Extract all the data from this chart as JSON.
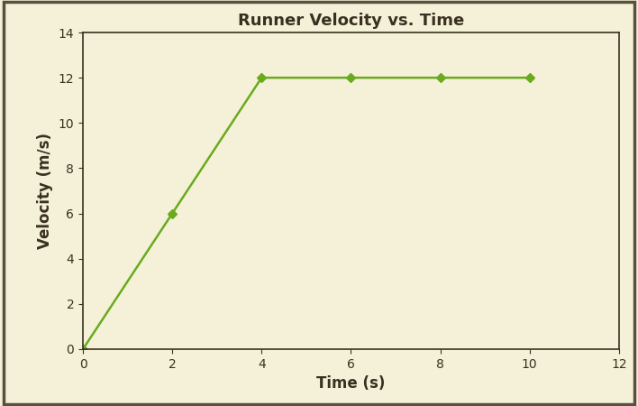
{
  "title": "Runner Velocity vs. Time",
  "xlabel": "Time (s)",
  "ylabel": "Velocity (m/s)",
  "x": [
    0,
    2,
    4,
    6,
    8,
    10
  ],
  "y": [
    0,
    6,
    12,
    12,
    12,
    12
  ],
  "xlim": [
    0,
    12
  ],
  "ylim": [
    0,
    14
  ],
  "xticks": [
    0,
    2,
    4,
    6,
    8,
    10,
    12
  ],
  "yticks": [
    0,
    2,
    4,
    6,
    8,
    10,
    12,
    14
  ],
  "line_color": "#6aaa1e",
  "marker": "D",
  "marker_size": 5,
  "line_width": 1.8,
  "plot_bg_color": "#f5f1d8",
  "fig_bg_color": "#f5f1d8",
  "border_color": "#5a5040",
  "border_linewidth": 2.5,
  "title_fontsize": 13,
  "label_fontsize": 12,
  "tick_fontsize": 10,
  "title_fontweight": "bold",
  "label_fontweight": "bold",
  "spine_color": "#3a3020",
  "spine_linewidth": 1.2
}
